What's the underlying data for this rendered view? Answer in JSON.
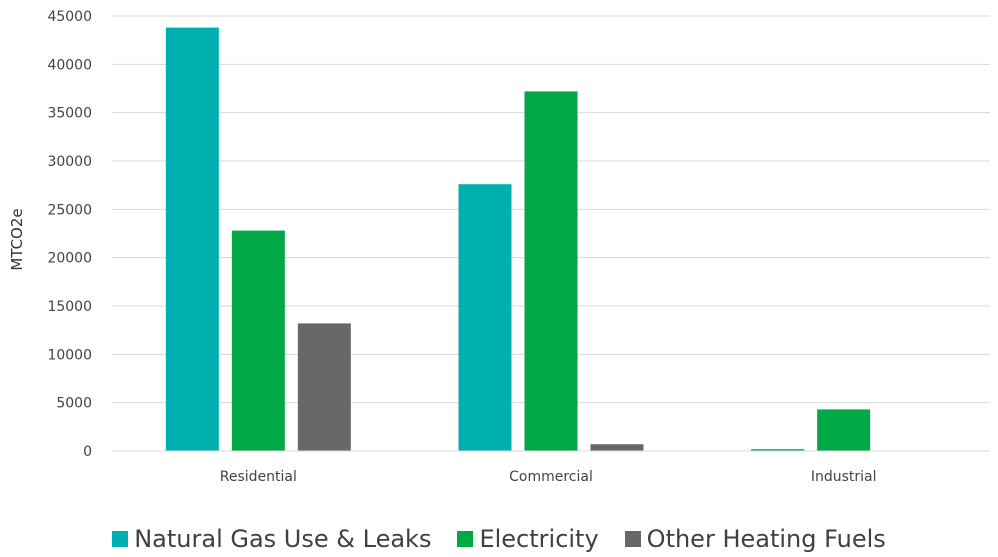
{
  "chart_data": {
    "type": "bar",
    "title": "",
    "xlabel": "",
    "ylabel": "MTCO2e",
    "ylim": [
      0,
      45000
    ],
    "yticks": [
      0,
      5000,
      10000,
      15000,
      20000,
      25000,
      30000,
      35000,
      40000,
      45000
    ],
    "grid": true,
    "legend_position": "bottom",
    "categories": [
      "Residential",
      "Commercial",
      "Industrial"
    ],
    "series": [
      {
        "name": "Natural Gas Use & Leaks",
        "color": "#00B0B0",
        "values": [
          43800,
          27600,
          200
        ]
      },
      {
        "name": "Electricity",
        "color": "#00A846",
        "values": [
          22800,
          37200,
          4300
        ]
      },
      {
        "name": "Other Heating Fuels",
        "color": "#686868",
        "values": [
          13200,
          700,
          0
        ]
      }
    ]
  }
}
